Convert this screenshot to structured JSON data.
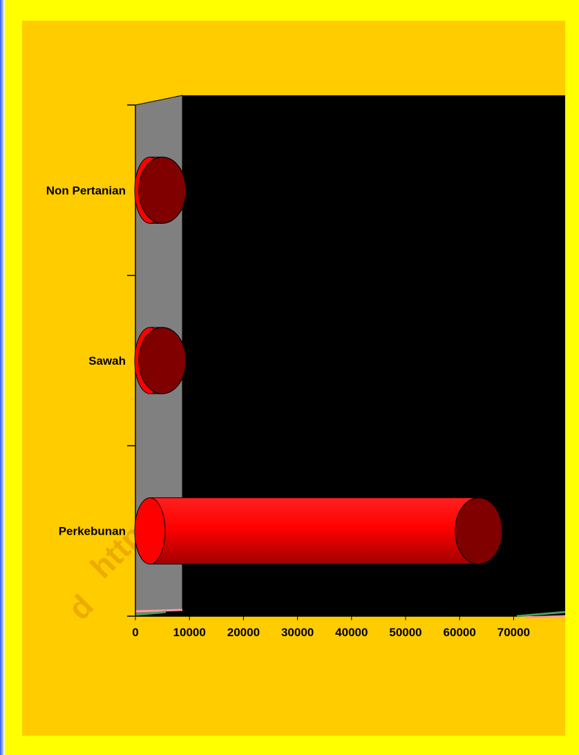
{
  "watermark": {
    "line1": "http://emp",
    "line2": "d"
  },
  "colors": {
    "outer_border": "#3a63f0",
    "frame": "#ffff00",
    "panel": "#ffcc00",
    "plot_back": "#000000",
    "plot_side": "#808080",
    "bar_body": "#ff0000",
    "bar_cap": "#800000"
  },
  "chart_data": {
    "type": "bar",
    "orientation": "horizontal",
    "style": "3d-cylinder",
    "categories": [
      "Non Pertanian",
      "Sawah",
      "Perkebunan"
    ],
    "values": [
      1500,
      3000,
      62000
    ],
    "title": "",
    "xlabel": "",
    "ylabel": "",
    "xlim": [
      0,
      70000
    ],
    "x_ticks": [
      "0",
      "10000",
      "20000",
      "30000",
      "40000",
      "50000",
      "60000",
      "70000"
    ],
    "grid": false,
    "legend": "none"
  }
}
